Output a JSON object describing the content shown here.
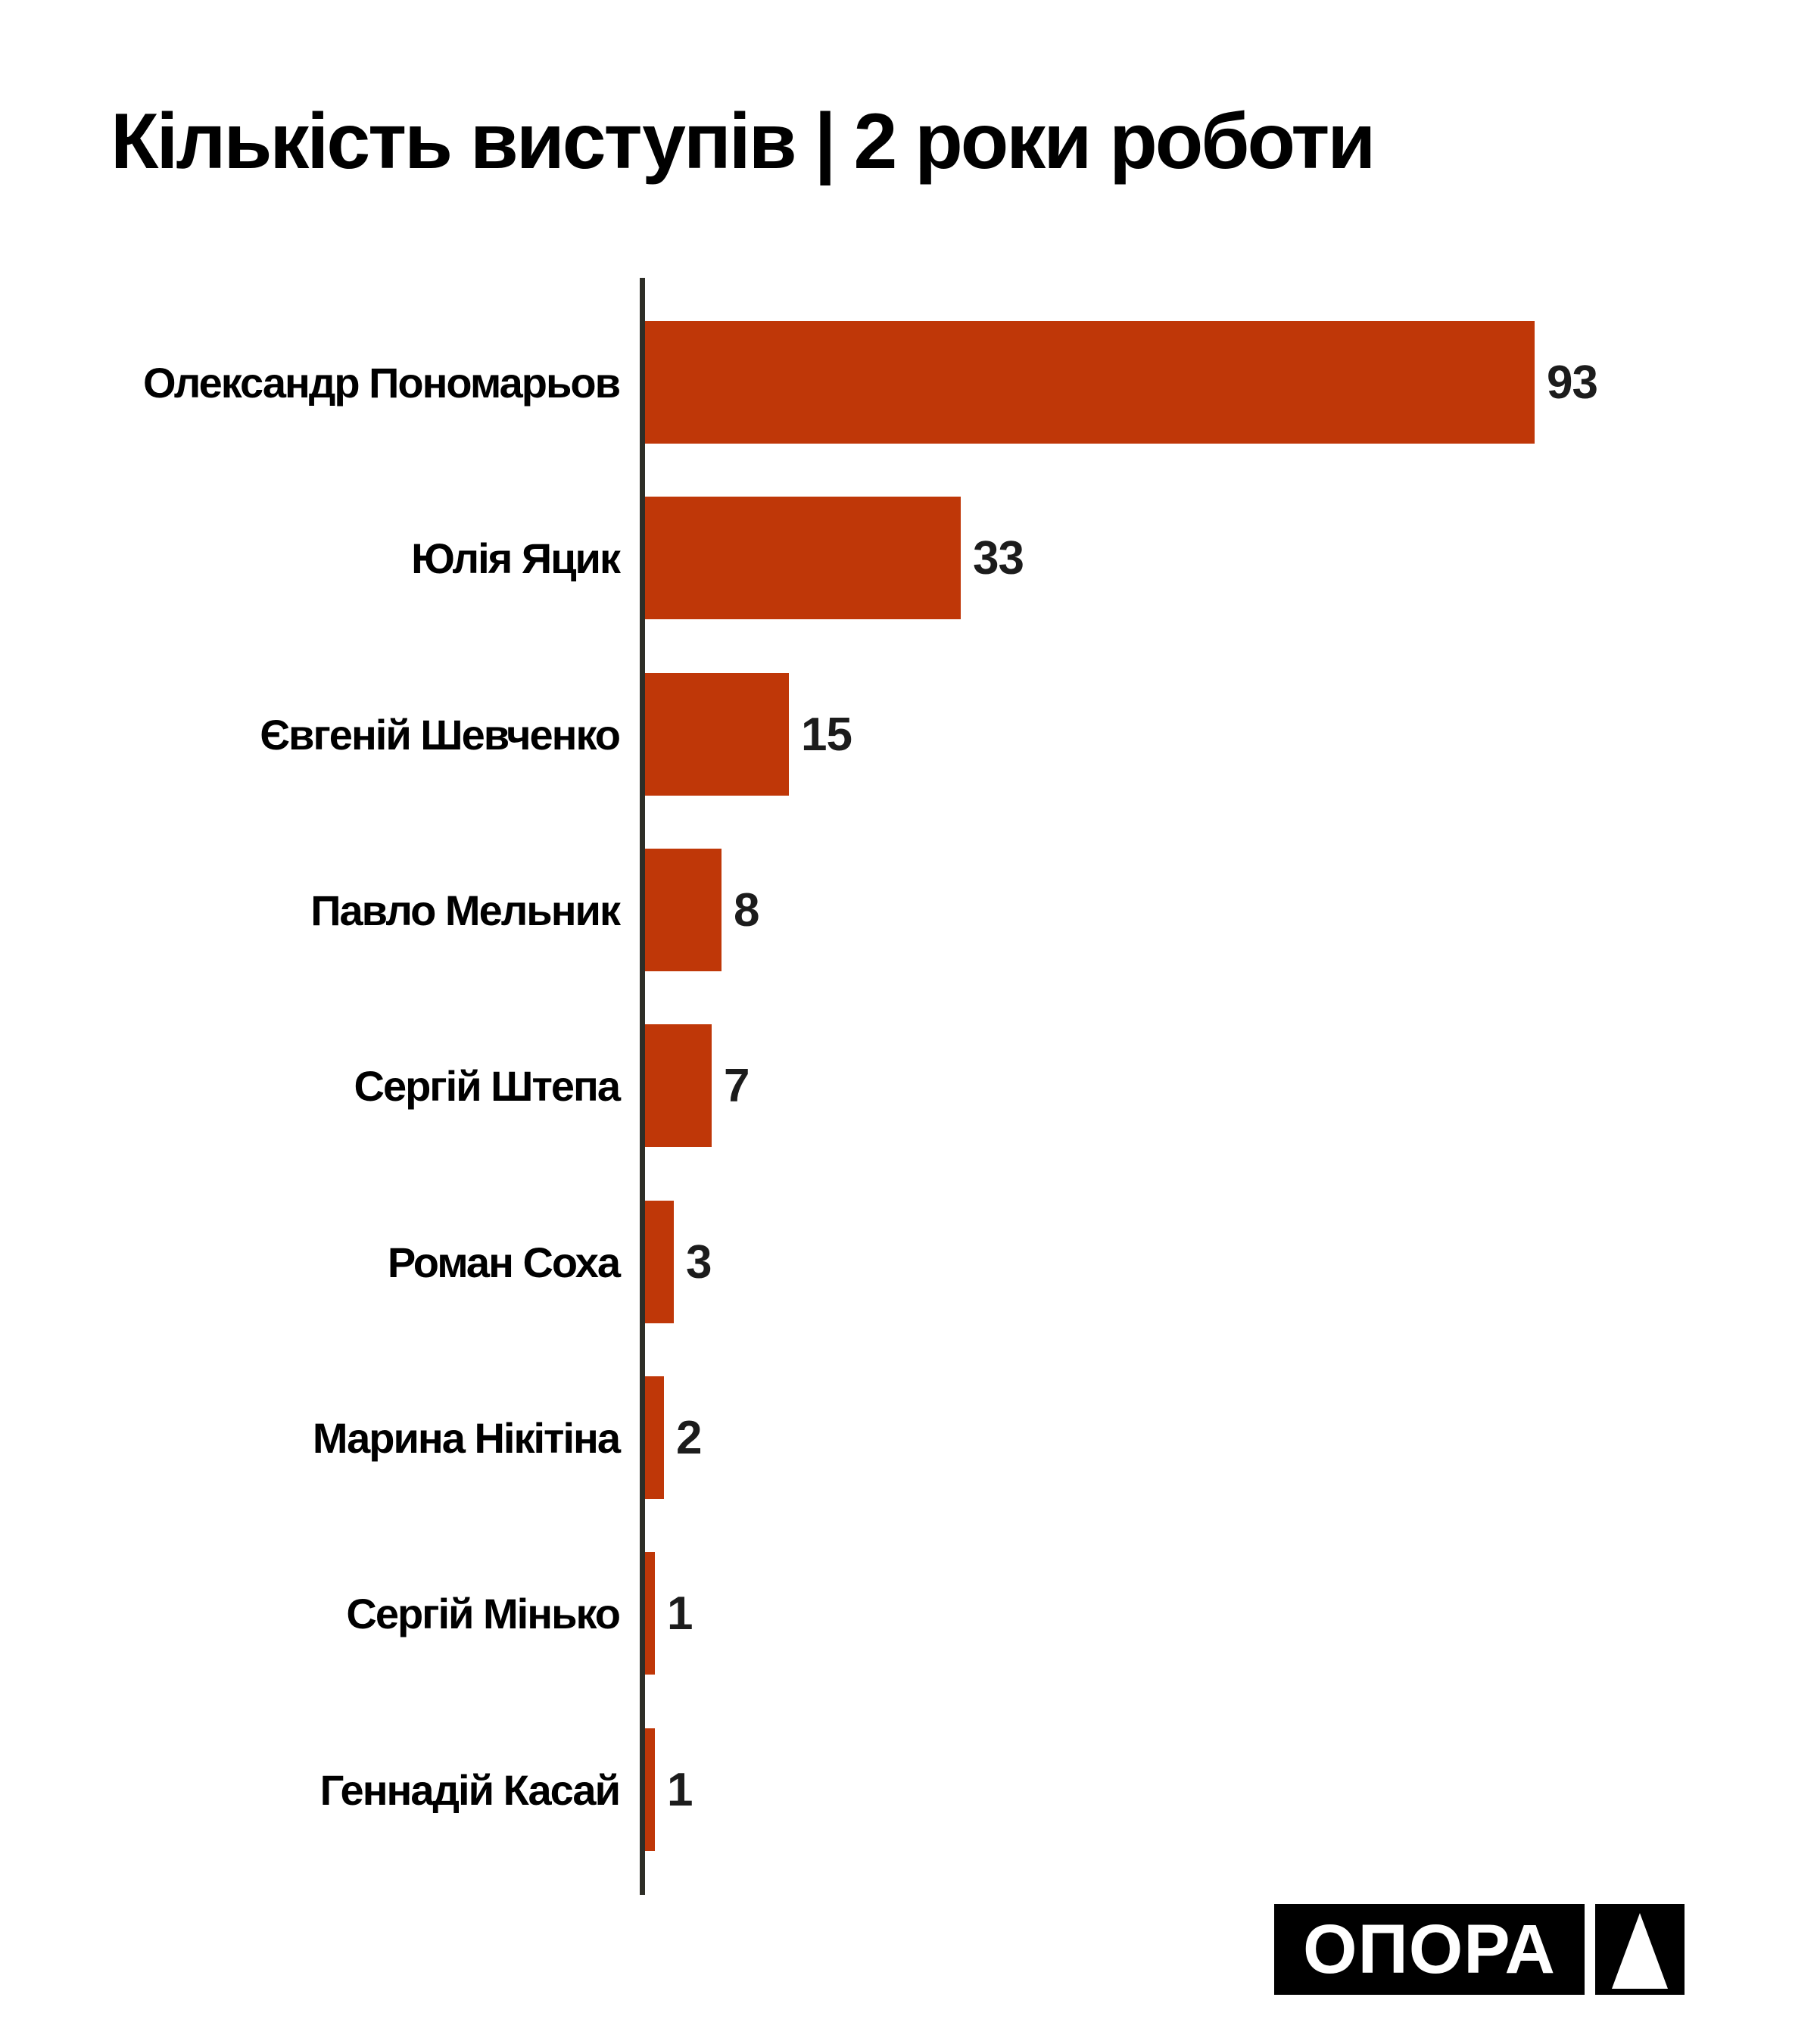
{
  "title": "Кількість виступів | 2 роки роботи",
  "chart_data": {
    "type": "bar",
    "orientation": "horizontal",
    "title": "Кількість виступів | 2 роки роботи",
    "categories": [
      "Олександр Пономарьов",
      "Юлія Яцик",
      "Євгеній Шевченко",
      "Павло Мельник",
      "Сергій Штепа",
      "Роман Соха",
      "Марина Нікітіна",
      "Сергій Мінько",
      "Геннадій Касай"
    ],
    "values": [
      93,
      33,
      15,
      8,
      7,
      3,
      2,
      1,
      1
    ],
    "value_labels": [
      "93",
      "33",
      "15",
      "8",
      "7",
      "3",
      "2",
      "1",
      "1"
    ],
    "xlabel": "",
    "ylabel": "",
    "xlim": [
      0,
      100
    ],
    "grid": false,
    "legend": false,
    "bar_color": "#bf3708",
    "axis_color": "#2e2e27",
    "label_color": "#000000",
    "value_label_color": "#1c1c1c",
    "value_label_position": "right-of-bar"
  },
  "logo": {
    "text": "ОПОРА",
    "icon": "triangle-up",
    "background": "#000000",
    "foreground": "#ffffff"
  }
}
